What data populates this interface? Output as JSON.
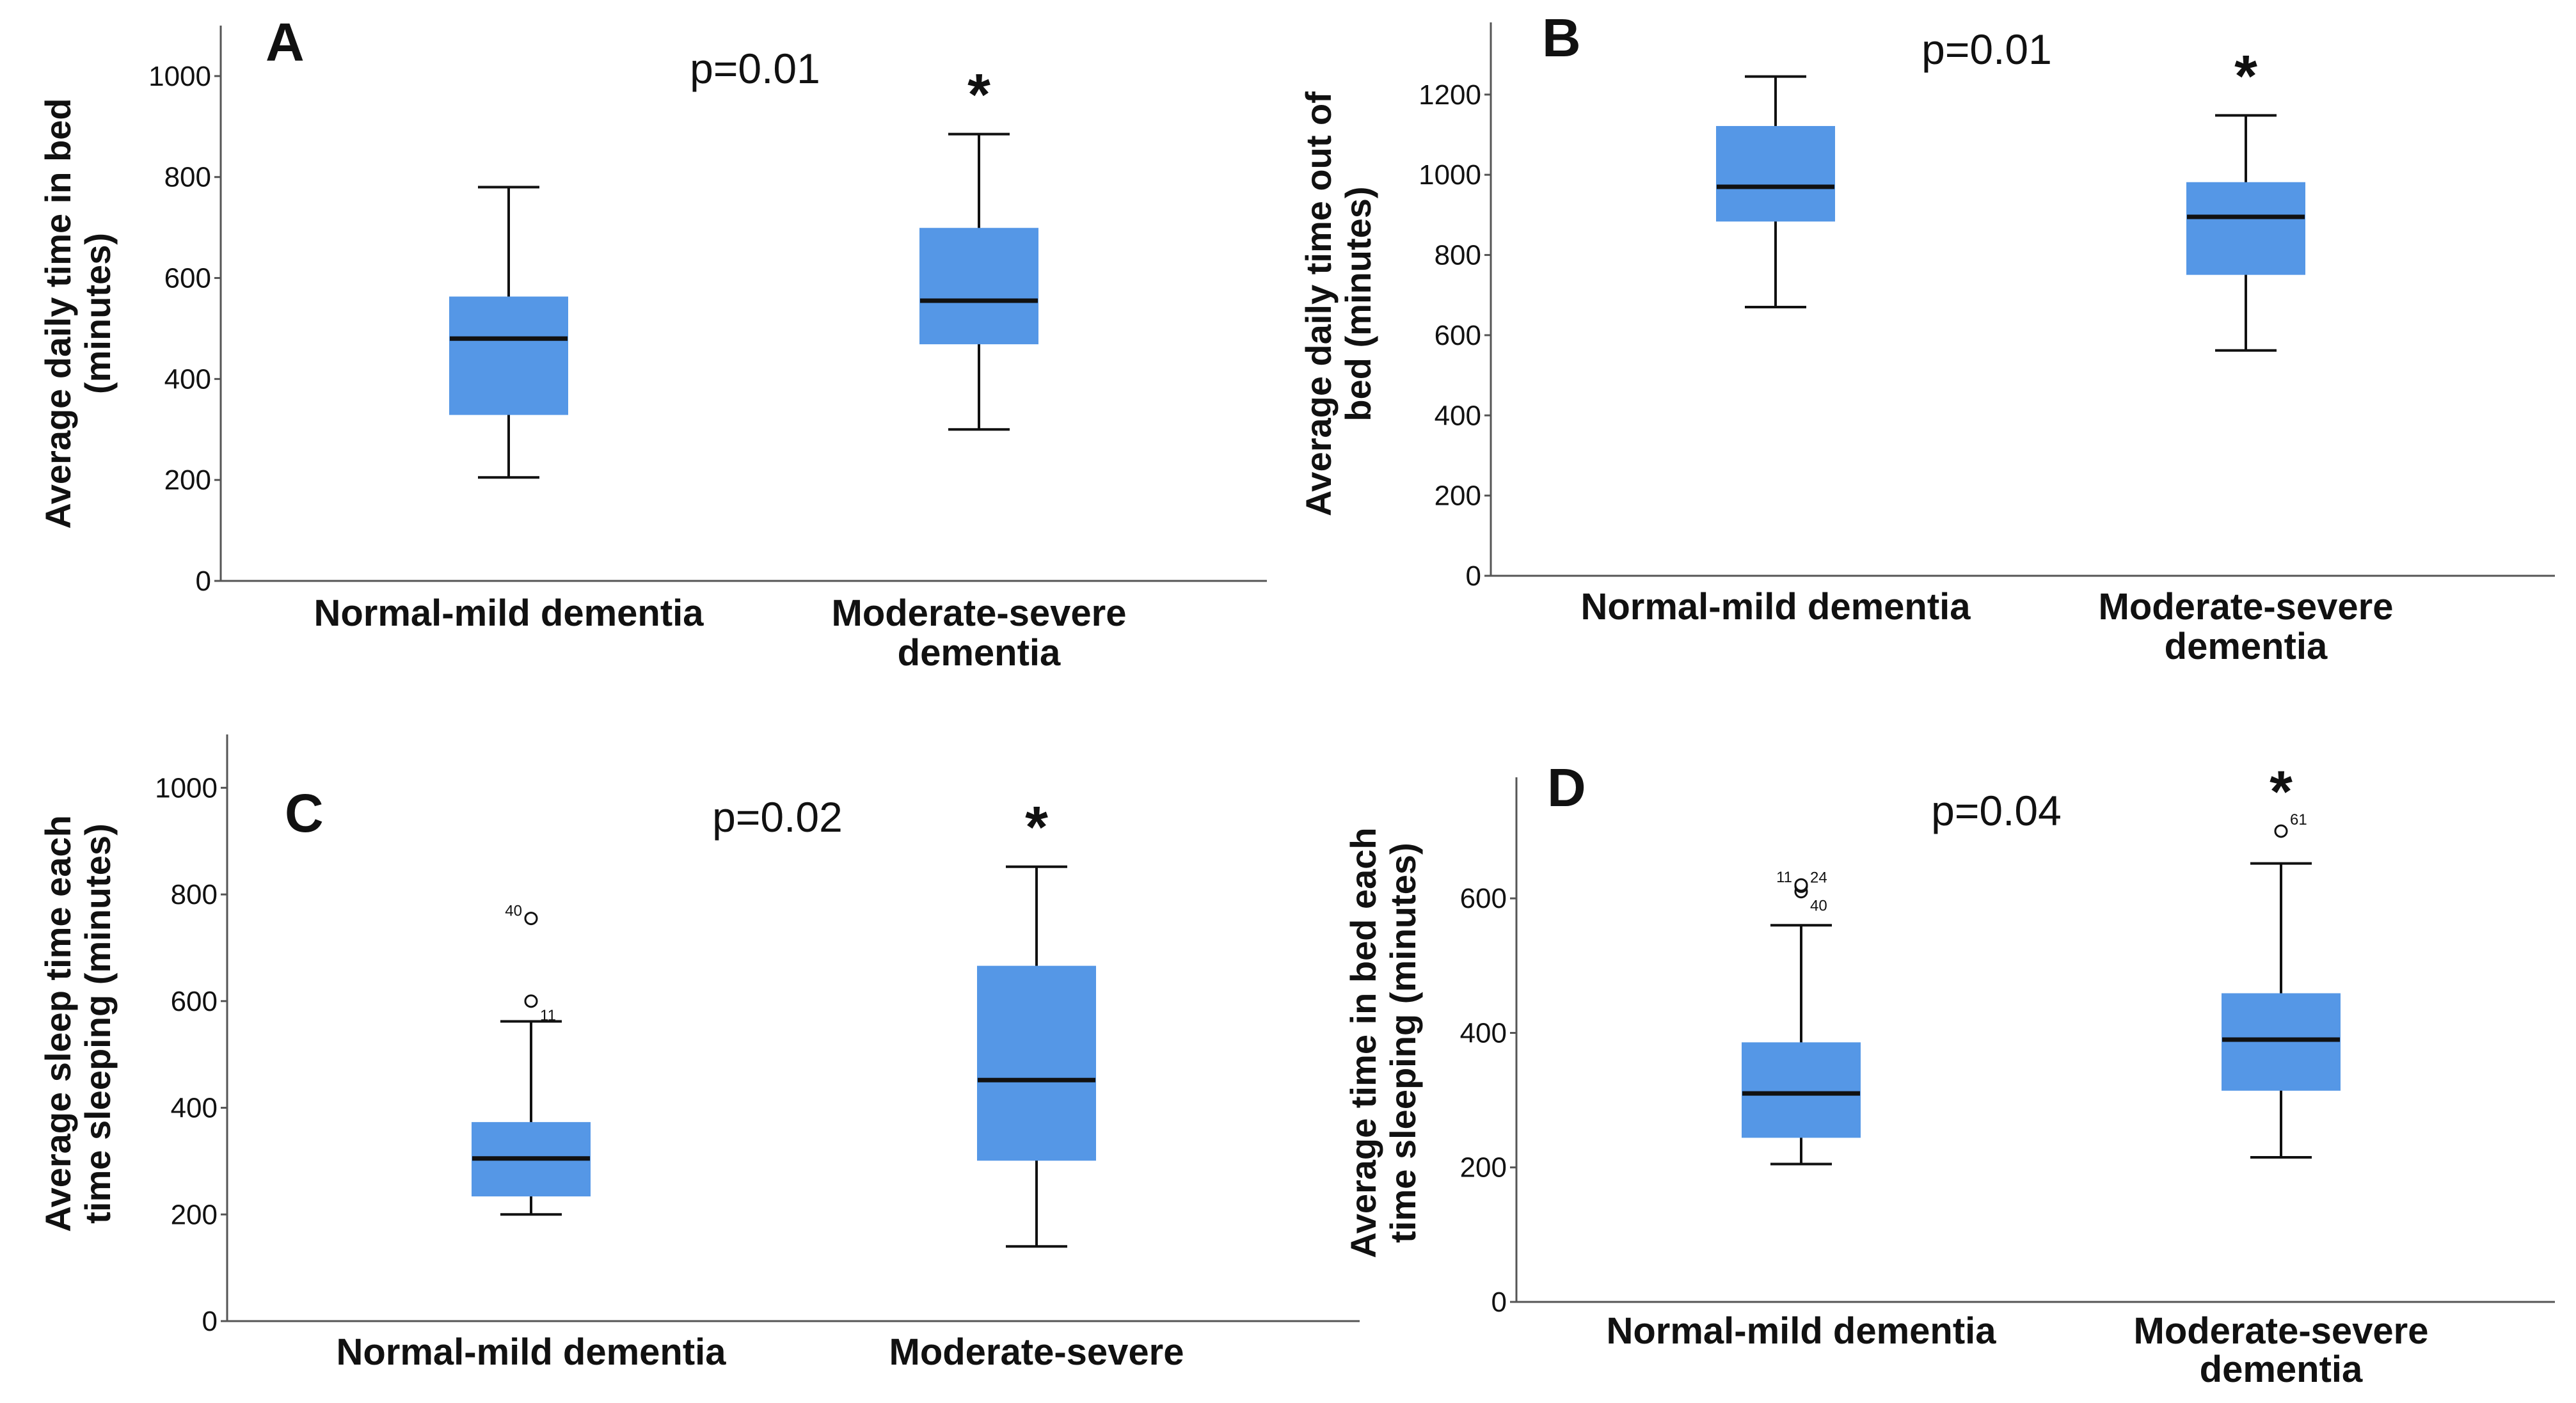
{
  "chart_data": [
    {
      "type": "box",
      "panel": "A",
      "p_value": "p=0.01",
      "ylabel": [
        "Average daily time in bed",
        "(minutes)"
      ],
      "categories": [
        "Normal-mild dementia",
        [
          "Moderate-severe",
          "dementia"
        ]
      ],
      "yticks": [
        "0",
        "200",
        "400",
        "600",
        "800",
        "1000"
      ],
      "ylim": [
        0,
        1100
      ],
      "boxes": [
        {
          "min": 205,
          "q1": 330,
          "median": 480,
          "q3": 562,
          "max": 780,
          "outliers": [],
          "significant": false
        },
        {
          "min": 300,
          "q1": 470,
          "median": 555,
          "q3": 698,
          "max": 885,
          "outliers": [],
          "significant": true
        }
      ]
    },
    {
      "type": "box",
      "panel": "B",
      "p_value": "p=0.01",
      "ylabel": [
        "Average daily time out of",
        "bed (minutes)"
      ],
      "categories": [
        "Normal-mild dementia",
        [
          "Moderate-severe",
          "dementia"
        ]
      ],
      "yticks": [
        "0",
        "200",
        "400",
        "600",
        "800",
        "1000",
        "1200"
      ],
      "ylim": [
        0,
        1380
      ],
      "boxes": [
        {
          "min": 670,
          "q1": 885,
          "median": 970,
          "q3": 1120,
          "max": 1245,
          "outliers": [],
          "significant": false
        },
        {
          "min": 562,
          "q1": 752,
          "median": 895,
          "q3": 980,
          "max": 1148,
          "outliers": [],
          "significant": true
        }
      ]
    },
    {
      "type": "box",
      "panel": "C",
      "p_value": "p=0.02",
      "ylabel": [
        "Average sleep time each",
        "time sleeping (minutes)"
      ],
      "categories": [
        "Normal-mild dementia",
        [
          "Moderate-severe"
        ]
      ],
      "yticks": [
        "0",
        "200",
        "400",
        "600",
        "800",
        "1000"
      ],
      "ylim": [
        0,
        1100
      ],
      "boxes": [
        {
          "min": 200,
          "q1": 235,
          "median": 305,
          "q3": 372,
          "max": 562,
          "outliers": [
            {
              "value": 600,
              "label": "11"
            },
            {
              "value": 755,
              "label": "40"
            }
          ],
          "significant": false
        },
        {
          "min": 140,
          "q1": 302,
          "median": 452,
          "q3": 665,
          "max": 852,
          "outliers": [],
          "significant": true
        }
      ]
    },
    {
      "type": "box",
      "panel": "D",
      "p_value": "p=0.04",
      "ylabel": [
        "Average time in bed each",
        "time sleeping (minutes)"
      ],
      "categories": [
        "Normal-mild dementia",
        [
          "Moderate-severe",
          "dementia"
        ]
      ],
      "yticks": [
        "0",
        "200",
        "400",
        "600"
      ],
      "ylim": [
        0,
        780
      ],
      "boxes": [
        {
          "min": 205,
          "q1": 245,
          "median": 310,
          "q3": 385,
          "max": 560,
          "outliers": [
            {
              "value": 610,
              "label": "40"
            },
            {
              "value": 618,
              "label": "24"
            },
            {
              "value": 620,
              "label": "11"
            }
          ],
          "significant": false
        },
        {
          "min": 215,
          "q1": 315,
          "median": 390,
          "q3": 458,
          "max": 652,
          "outliers": [
            {
              "value": 700,
              "label": "61"
            }
          ],
          "significant": true
        }
      ]
    }
  ]
}
